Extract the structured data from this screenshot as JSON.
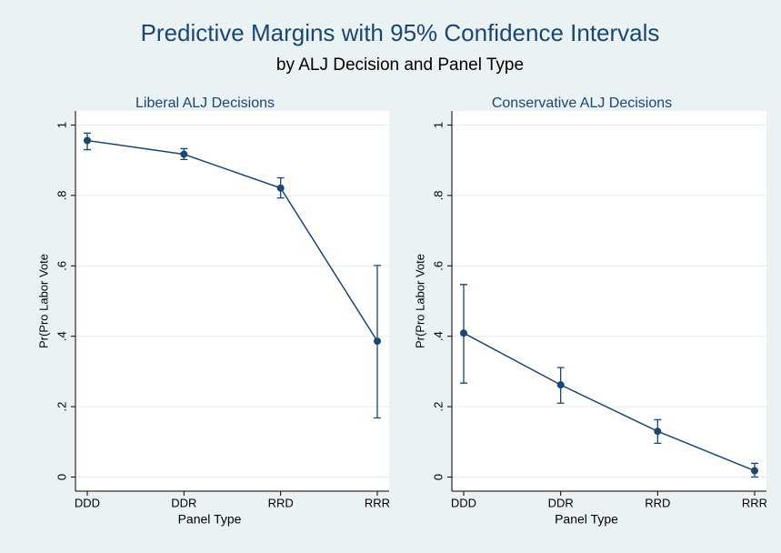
{
  "header": {
    "title": "Predictive Margins with 95% Confidence Intervals",
    "subtitle": "by ALJ Decision and Panel Type"
  },
  "chart_data": [
    {
      "type": "line",
      "title": "Liberal ALJ Decisions",
      "xlabel": "Panel Type",
      "ylabel": "Pr(Pro Labor Vote",
      "categories": [
        "DDD",
        "DDR",
        "RRD",
        "RRR"
      ],
      "color": "#1a476f",
      "values": [
        0.956,
        0.917,
        0.821,
        0.386
      ],
      "lower": [
        0.93,
        0.902,
        0.793,
        0.168
      ],
      "upper": [
        0.977,
        0.933,
        0.85,
        0.601
      ],
      "ylim": [
        -0.04,
        1.04
      ],
      "yticks": [
        0,
        {
          "value": 0.2,
          "label": ".2"
        },
        {
          "value": 0.4,
          "label": ".4"
        },
        {
          "value": 0.6,
          "label": ".6"
        },
        {
          "value": 0.8,
          "label": ".8"
        },
        1
      ],
      "grid": true
    },
    {
      "type": "line",
      "title": "Conservative ALJ Decisions",
      "xlabel": "Panel Type",
      "ylabel": "Pr(Pro Labor Vote",
      "categories": [
        "DDD",
        "DDR",
        "RRD",
        "RRR"
      ],
      "color": "#1a476f",
      "values": [
        0.409,
        0.262,
        0.13,
        0.018
      ],
      "lower": [
        0.267,
        0.21,
        0.096,
        0.0
      ],
      "upper": [
        0.547,
        0.311,
        0.163,
        0.039
      ],
      "ylim": [
        -0.04,
        1.04
      ],
      "yticks": [
        0,
        {
          "value": 0.2,
          "label": ".2"
        },
        {
          "value": 0.4,
          "label": ".4"
        },
        {
          "value": 0.6,
          "label": ".6"
        },
        {
          "value": 0.8,
          "label": ".8"
        },
        1
      ],
      "grid": true
    }
  ]
}
